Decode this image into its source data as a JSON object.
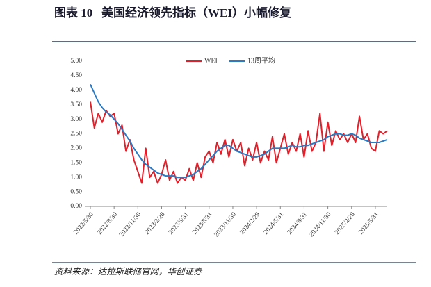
{
  "chart_data": {
    "type": "line",
    "title": "图表 10   美国经济领先指标（WEI）小幅修复",
    "source": "资料来源：达拉斯联储官网，华创证券",
    "categories": [
      "2022/5/30",
      null,
      null,
      null,
      null,
      null,
      "2022/8/30",
      null,
      null,
      null,
      null,
      null,
      "2022/11/30",
      null,
      null,
      null,
      null,
      null,
      "2023/2/28",
      null,
      null,
      null,
      null,
      null,
      "2023/5/31",
      null,
      null,
      null,
      null,
      null,
      "2023/8/31",
      null,
      null,
      null,
      null,
      null,
      "2023/11/30",
      null,
      null,
      null,
      null,
      null,
      "2024/2/29",
      null,
      null,
      null,
      null,
      null,
      "2024/5/31",
      null,
      null,
      null,
      null,
      null,
      "2024/8/31",
      null,
      null,
      null,
      null,
      null,
      "2024/11/30",
      null,
      null,
      null,
      null,
      null,
      "2025/2/28",
      null,
      null,
      null,
      null,
      null,
      "2025/5/31",
      null,
      null,
      null
    ],
    "series": [
      {
        "name": "WEI",
        "color": "#e0202a",
        "values": [
          3.6,
          2.7,
          3.2,
          2.9,
          3.3,
          3.1,
          3.2,
          2.5,
          2.8,
          1.9,
          2.3,
          1.6,
          1.2,
          0.8,
          2.0,
          1.0,
          1.2,
          0.8,
          1.1,
          1.6,
          0.9,
          1.2,
          0.8,
          1.0,
          0.9,
          1.3,
          0.9,
          1.5,
          1.0,
          1.7,
          1.9,
          1.5,
          2.2,
          1.8,
          2.3,
          1.7,
          2.3,
          1.9,
          2.2,
          1.4,
          2.0,
          1.6,
          2.2,
          1.5,
          1.9,
          1.6,
          2.4,
          1.5,
          2.0,
          2.5,
          1.8,
          2.2,
          1.9,
          2.5,
          1.7,
          2.6,
          1.9,
          2.2,
          3.2,
          1.9,
          2.9,
          2.1,
          2.6,
          2.3,
          2.5,
          2.2,
          2.5,
          2.2,
          3.1,
          2.3,
          2.5,
          2.0,
          1.9,
          2.6,
          2.5,
          2.6
        ]
      },
      {
        "name": "13周平均",
        "color": "#2a7ac4",
        "values": [
          4.2,
          3.9,
          3.6,
          3.4,
          3.25,
          3.15,
          3.0,
          2.85,
          2.65,
          2.45,
          2.25,
          2.0,
          1.8,
          1.6,
          1.45,
          1.35,
          1.25,
          1.15,
          1.1,
          1.05,
          1.05,
          1.05,
          1.0,
          1.0,
          1.0,
          1.05,
          1.1,
          1.2,
          1.3,
          1.45,
          1.6,
          1.75,
          1.9,
          2.0,
          2.1,
          2.1,
          2.0,
          1.9,
          1.85,
          1.8,
          1.75,
          1.7,
          1.7,
          1.75,
          1.8,
          1.9,
          2.0,
          2.0,
          2.0,
          2.0,
          2.05,
          2.1,
          2.05,
          2.05,
          2.1,
          2.1,
          2.15,
          2.2,
          2.25,
          2.3,
          2.4,
          2.45,
          2.5,
          2.5,
          2.45,
          2.45,
          2.5,
          2.45,
          2.35,
          2.3,
          2.25,
          2.2,
          2.2,
          2.2,
          2.25,
          2.3
        ]
      }
    ],
    "ylim": [
      0,
      5
    ],
    "yticks": [
      {
        "value": 0,
        "label": "0.00"
      },
      {
        "value": 0.5,
        "label": "0.50"
      },
      {
        "value": 1,
        "label": "1.00"
      },
      {
        "value": 1.5,
        "label": "1.50"
      },
      {
        "value": 2,
        "label": "2.00"
      },
      {
        "value": 2.5,
        "label": "2.50"
      },
      {
        "value": 3,
        "label": "3.00"
      },
      {
        "value": 3.5,
        "label": "3.50"
      },
      {
        "value": 4,
        "label": "4.00"
      },
      {
        "value": 4.5,
        "label": "4.50"
      },
      {
        "value": 5,
        "label": "5.00"
      }
    ],
    "grid": false
  }
}
